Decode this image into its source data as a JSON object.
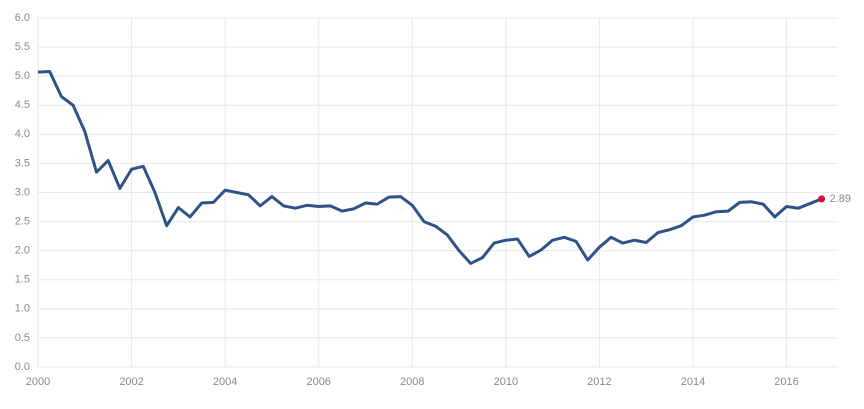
{
  "chart_data": {
    "type": "line",
    "x": [
      2000,
      2000.25,
      2000.5,
      2000.75,
      2001,
      2001.25,
      2001.5,
      2001.75,
      2002,
      2002.25,
      2002.5,
      2002.75,
      2003,
      2003.25,
      2003.5,
      2003.75,
      2004,
      2004.25,
      2004.5,
      2004.75,
      2005,
      2005.25,
      2005.5,
      2005.75,
      2006,
      2006.25,
      2006.5,
      2006.75,
      2007,
      2007.25,
      2007.5,
      2007.75,
      2008,
      2008.25,
      2008.5,
      2008.75,
      2009,
      2009.25,
      2009.5,
      2009.75,
      2010,
      2010.25,
      2010.5,
      2010.75,
      2011,
      2011.25,
      2011.5,
      2011.75,
      2012,
      2012.25,
      2012.5,
      2012.75,
      2013,
      2013.25,
      2013.5,
      2013.75,
      2014,
      2014.25,
      2014.5,
      2014.75,
      2015,
      2015.25,
      2015.5,
      2015.75,
      2016,
      2016.25,
      2016.5,
      2016.75
    ],
    "series": [
      {
        "color": "#2f5387",
        "values": [
          5.07,
          5.08,
          4.65,
          4.5,
          4.05,
          3.35,
          3.55,
          3.07,
          3.4,
          3.45,
          3.0,
          2.43,
          2.74,
          2.58,
          2.82,
          2.83,
          3.04,
          3.0,
          2.96,
          2.77,
          2.93,
          2.77,
          2.73,
          2.78,
          2.76,
          2.77,
          2.68,
          2.72,
          2.82,
          2.8,
          2.92,
          2.93,
          2.78,
          2.5,
          2.42,
          2.27,
          2.0,
          1.78,
          1.88,
          2.13,
          2.18,
          2.2,
          1.9,
          2.01,
          2.18,
          2.23,
          2.16,
          1.84,
          2.06,
          2.23,
          2.13,
          2.18,
          2.14,
          2.31,
          2.36,
          2.43,
          2.58,
          2.61,
          2.67,
          2.68,
          2.83,
          2.84,
          2.8,
          2.58,
          2.76,
          2.73,
          2.81,
          2.89
        ]
      }
    ],
    "last_point_color": "#d0103a",
    "xlim": [
      2000,
      2017.1
    ],
    "xticks": [
      2000,
      2002,
      2004,
      2006,
      2008,
      2010,
      2012,
      2014,
      2016
    ],
    "ylim": [
      0,
      6
    ],
    "yticks": [
      {
        "value": 0,
        "label": "0.0"
      },
      {
        "value": 0.5,
        "label": "0.5"
      },
      {
        "value": 1,
        "label": "1.0"
      },
      {
        "value": 1.5,
        "label": "1.5"
      },
      {
        "value": 2,
        "label": "2.0"
      },
      {
        "value": 2.5,
        "label": "2.5"
      },
      {
        "value": 3,
        "label": "3.0"
      },
      {
        "value": 3.5,
        "label": "3.5"
      },
      {
        "value": 4,
        "label": "4.0"
      },
      {
        "value": 4.5,
        "label": "4.5"
      },
      {
        "value": 5,
        "label": "5.0"
      },
      {
        "value": 5.5,
        "label": "5.5"
      },
      {
        "value": 6,
        "label": "6.0"
      }
    ],
    "grid": true
  }
}
